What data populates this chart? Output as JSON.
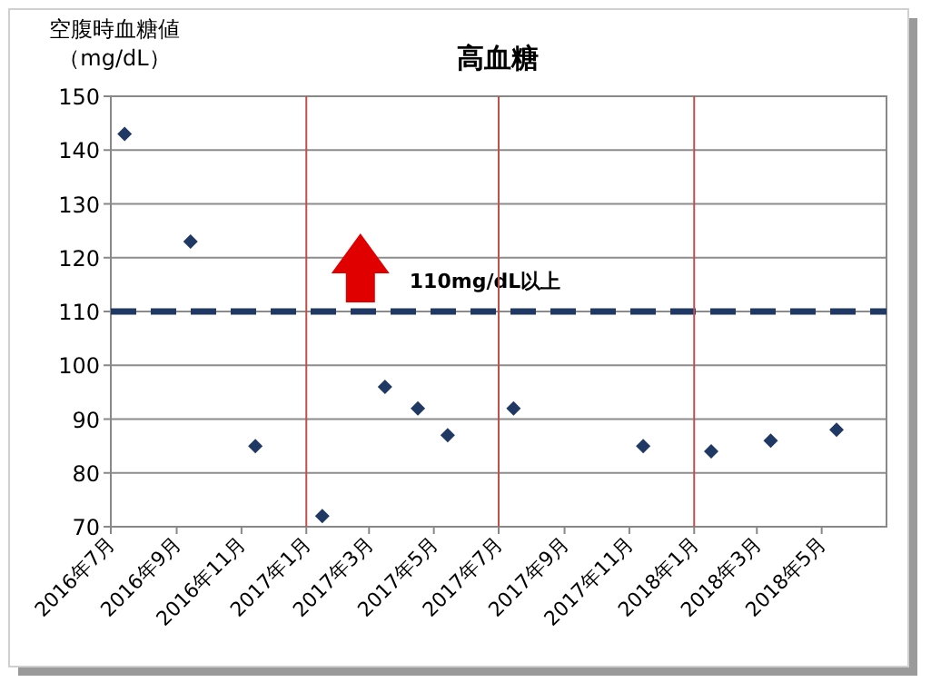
{
  "chart_data": {
    "type": "scatter",
    "title": "高血糖",
    "ylabel": "空腹時血糖値（mg/dL）",
    "x": [
      "2016-07-14",
      "2016-09-14",
      "2016-11-14",
      "2017-01-16",
      "2017-03-16",
      "2017-04-16",
      "2017-05-14",
      "2017-07-15",
      "2017-11-14",
      "2018-01-17",
      "2018-03-14",
      "2018-05-15"
    ],
    "series": [
      {
        "color": "#1f3864",
        "values": [
          143,
          123,
          85,
          72,
          96,
          92,
          87,
          92,
          85,
          84,
          86,
          88
        ]
      }
    ],
    "xlim": [
      "2016-07",
      "2018-07"
    ],
    "xticks": [
      {
        "value": "2016-07",
        "label": "2016年7月"
      },
      {
        "value": "2016-09",
        "label": "2016年9月"
      },
      {
        "value": "2016-11",
        "label": "2016年11月"
      },
      {
        "value": "2017-01",
        "label": "2017年1月"
      },
      {
        "value": "2017-03",
        "label": "2017年3月"
      },
      {
        "value": "2017-05",
        "label": "2017年5月"
      },
      {
        "value": "2017-07",
        "label": "2017年7月"
      },
      {
        "value": "2017-09",
        "label": "2017年9月"
      },
      {
        "value": "2017-11",
        "label": "2017年11月"
      },
      {
        "value": "2018-01",
        "label": "2018年1月"
      },
      {
        "value": "2018-03",
        "label": "2018年3月"
      },
      {
        "value": "2018-05",
        "label": "2018年5月"
      }
    ],
    "ylim": [
      70,
      150
    ],
    "yticks": [
      70,
      80,
      90,
      100,
      110,
      120,
      130,
      140,
      150
    ],
    "grid": "y",
    "marker": "diamond",
    "ref_lines": [
      {
        "axis": "y",
        "value": 110,
        "label": "110mg/dL以上",
        "color": "#1f3864",
        "line_style": "dashed"
      },
      {
        "axis": "x",
        "value": "2017-01",
        "color": "#c0504d",
        "line_style": "solid"
      },
      {
        "axis": "x",
        "value": "2017-07",
        "color": "#c0504d",
        "line_style": "solid"
      },
      {
        "axis": "x",
        "value": "2018-01",
        "color": "#c0504d",
        "line_style": "solid"
      }
    ]
  }
}
